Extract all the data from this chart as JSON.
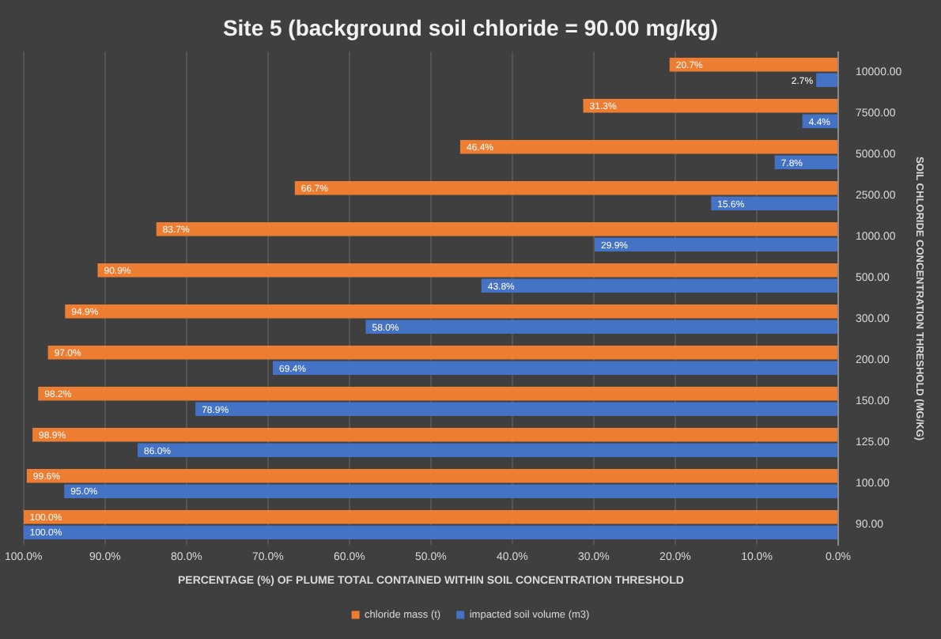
{
  "chart_data": {
    "type": "bar",
    "orientation": "horizontal",
    "title": "Site 5 (background soil chloride = 90.00 mg/kg)",
    "xlabel": "PERCENTAGE (%) OF PLUME TOTAL CONTAINED WITHIN SOIL CONCENTRATION THRESHOLD",
    "ylabel": "SOIL CHLORIDE CONCENTRATION THRESHOLD (MG/KG)",
    "categories": [
      "10000.00",
      "7500.00",
      "5000.00",
      "2500.00",
      "1000.00",
      "500.00",
      "300.00",
      "200.00",
      "150.00",
      "125.00",
      "100.00",
      "90.00"
    ],
    "series": [
      {
        "name": "chloride mass (t)",
        "color": "#ed7d31",
        "values": [
          20.7,
          31.3,
          46.4,
          66.7,
          83.7,
          90.9,
          94.9,
          97.0,
          98.2,
          98.9,
          99.6,
          100.0
        ],
        "value_labels": [
          "20.7%",
          "31.3%",
          "46.4%",
          "66.7%",
          "83.7%",
          "90.9%",
          "94.9%",
          "97.0%",
          "98.2%",
          "98.9%",
          "99.6%",
          "100.0%"
        ]
      },
      {
        "name": "impacted soil volume (m3)",
        "color": "#4472c4",
        "values": [
          2.7,
          4.4,
          7.8,
          15.6,
          29.9,
          43.8,
          58.0,
          69.4,
          78.9,
          86.0,
          95.0,
          100.0
        ],
        "value_labels": [
          "2.7%",
          "4.4%",
          "7.8%",
          "15.6%",
          "29.9%",
          "43.8%",
          "58.0%",
          "69.4%",
          "78.9%",
          "86.0%",
          "95.0%",
          "100.0%"
        ]
      }
    ],
    "xlim": [
      100,
      0
    ],
    "xticks": [
      {
        "value": 100,
        "label": "100.0%"
      },
      {
        "value": 90,
        "label": "90.0%"
      },
      {
        "value": 80,
        "label": "80.0%"
      },
      {
        "value": 70,
        "label": "70.0%"
      },
      {
        "value": 60,
        "label": "60.0%"
      },
      {
        "value": 50,
        "label": "50.0%"
      },
      {
        "value": 40,
        "label": "40.0%"
      },
      {
        "value": 30,
        "label": "30.0%"
      },
      {
        "value": 20,
        "label": "20.0%"
      },
      {
        "value": 10,
        "label": "10.0%"
      },
      {
        "value": 0,
        "label": "0.0%"
      }
    ],
    "grid": "x",
    "legend": "bottom"
  }
}
